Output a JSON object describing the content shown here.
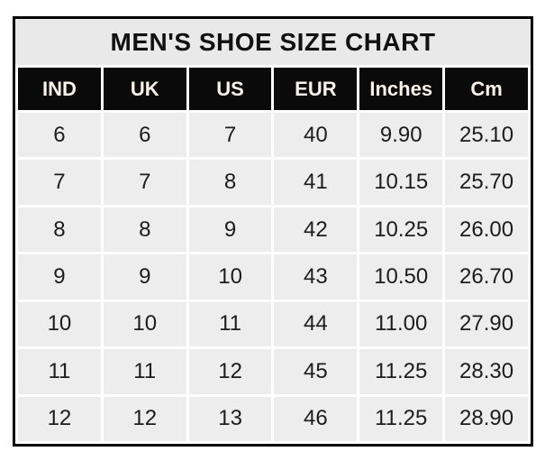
{
  "title": "MEN'S SHOE SIZE CHART",
  "chart_data": {
    "type": "table",
    "title": "MEN'S SHOE SIZE CHART",
    "columns": [
      "IND",
      "UK",
      "US",
      "EUR",
      "Inches",
      "Cm"
    ],
    "rows": [
      [
        "6",
        "6",
        "7",
        "40",
        "9.90",
        "25.10"
      ],
      [
        "7",
        "7",
        "8",
        "41",
        "10.15",
        "25.70"
      ],
      [
        "8",
        "8",
        "9",
        "42",
        "10.25",
        "26.00"
      ],
      [
        "9",
        "9",
        "10",
        "43",
        "10.50",
        "26.70"
      ],
      [
        "10",
        "10",
        "11",
        "44",
        "11.00",
        "27.90"
      ],
      [
        "11",
        "11",
        "12",
        "45",
        "11.25",
        "28.30"
      ],
      [
        "12",
        "12",
        "13",
        "46",
        "11.25",
        "28.90"
      ]
    ],
    "layout": {
      "grid": "on",
      "legend": "none"
    }
  },
  "colors": {
    "border": "#000000",
    "title_bg": "#e9e9e9",
    "header_bg": "#0a0a0a",
    "header_text": "#f8f3e9",
    "row_bg": "#ededed",
    "grid_gap": "#ffffff",
    "text": "#1c1c1c"
  }
}
